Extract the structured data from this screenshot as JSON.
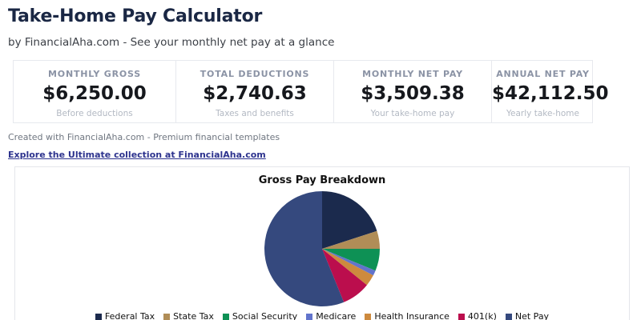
{
  "page": {
    "title": "Take-Home Pay Calculator",
    "subtitle": "by FinancialAha.com - See your monthly net pay at a glance",
    "footer_note": "Created with FinancialAha.com - Premium financial templates",
    "footer_link": "Explore the Ultimate collection at FinancialAha.com"
  },
  "stats": [
    {
      "label": "MONTHLY GROSS",
      "value": "$6,250.00",
      "sublabel": "Before deductions"
    },
    {
      "label": "TOTAL DEDUCTIONS",
      "value": "$2,740.63",
      "sublabel": "Taxes and benefits"
    },
    {
      "label": "MONTHLY NET PAY",
      "value": "$3,509.38",
      "sublabel": "Your take-home pay"
    },
    {
      "label": "ANNUAL NET PAY",
      "value": "$42,112.50",
      "sublabel": "Yearly take-home"
    }
  ],
  "chart_data": {
    "type": "pie",
    "title": "Gross Pay Breakdown",
    "labels": [
      "Federal Tax",
      "State Tax",
      "Social Security",
      "Medicare",
      "Health Insurance",
      "401(k)",
      "Net Pay"
    ],
    "values": [
      1250.0,
      312.5,
      387.5,
      90.63,
      200.0,
      500.0,
      3509.38
    ],
    "percentages": [
      20.0,
      5.0,
      6.2,
      1.45,
      3.2,
      8.0,
      56.15
    ],
    "colors": [
      "#1b2a4d",
      "#b08d57",
      "#0e9155",
      "#6274cc",
      "#cd8a3e",
      "#bb0e4d",
      "#35497e"
    ],
    "start_angle_deg": 0,
    "direction": "clockwise",
    "legend_position": "bottom"
  },
  "colors": {
    "heading": "#1a2744",
    "link": "#2d338e",
    "stat_label": "#8b93a5",
    "stat_value": "#16181d",
    "muted": "#b3b9c3",
    "card_border": "#e7e9ee"
  }
}
